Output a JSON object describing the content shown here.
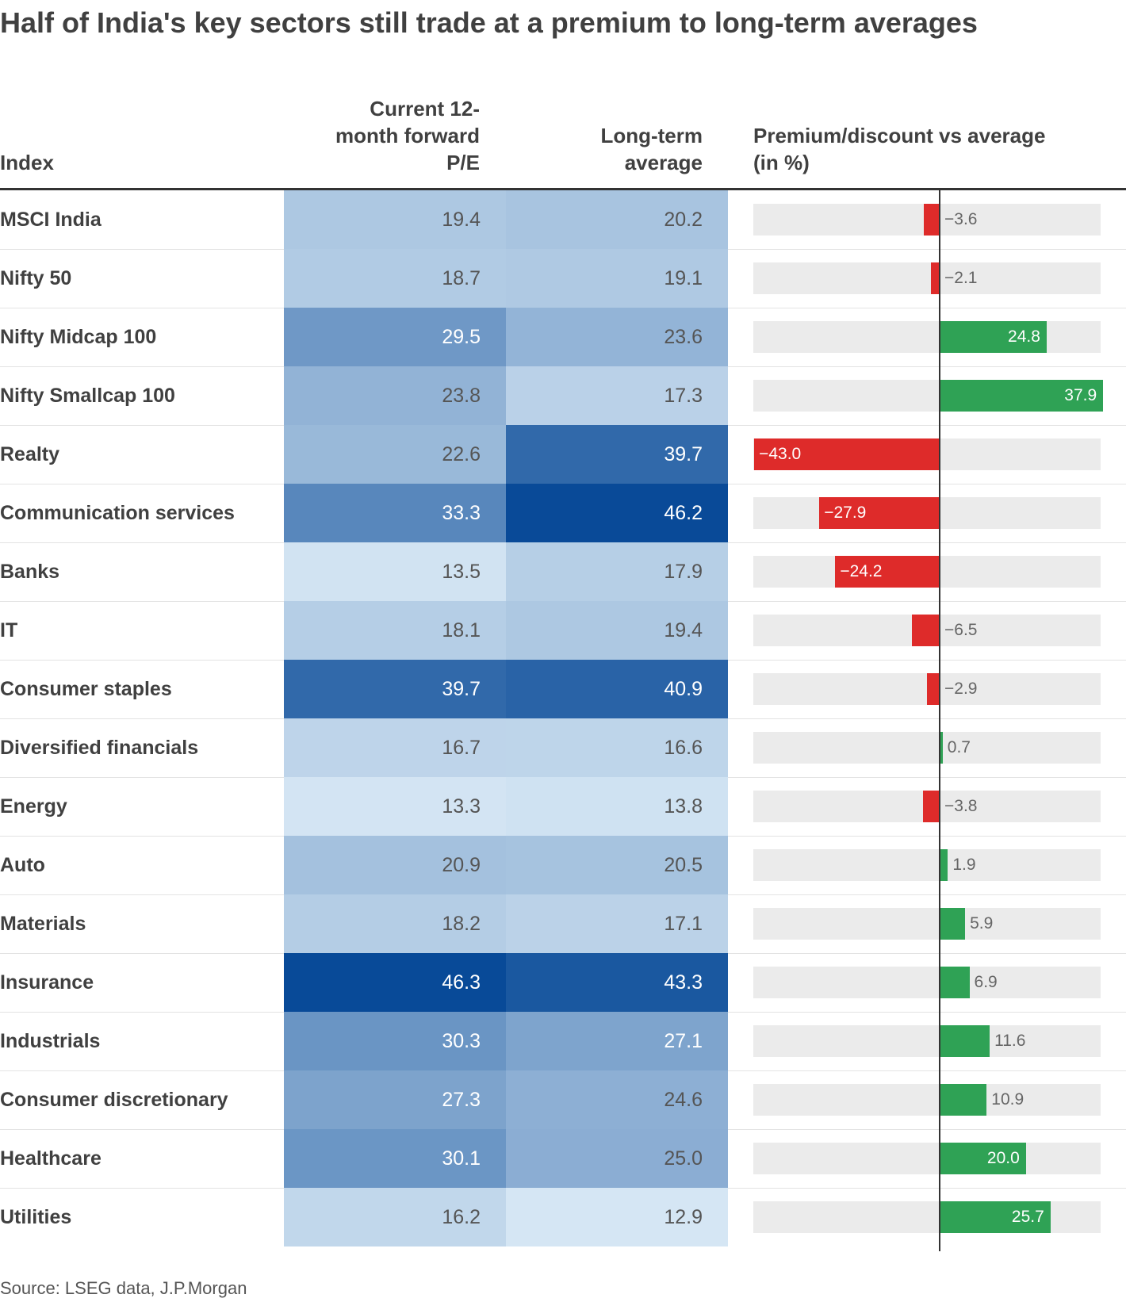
{
  "title": "Half of India's key sectors still trade at a premium to long-term averages",
  "headers": {
    "index": "Index",
    "current_pe": [
      "Current 12-",
      "month forward",
      "P/E"
    ],
    "long_term": [
      "Long-term",
      "average"
    ],
    "premium": [
      "Premium/discount vs average",
      "(in %)"
    ]
  },
  "source": "Source: LSEG data, J.P.Morgan",
  "colors": {
    "negative": "#de2b2a",
    "positive": "#2fa255",
    "track": "#ebebeb",
    "heat_low": "#d5e6f4",
    "heat_high": "#084a98"
  },
  "chart_data": {
    "type": "table",
    "title": "Half of India's key sectors still trade at a premium to long-term averages",
    "columns": [
      "Index",
      "Current 12-month forward P/E",
      "Long-term average",
      "Premium/discount vs average (in %)"
    ],
    "rows": [
      {
        "index": "MSCI India",
        "current": "19.4",
        "longterm": "20.2",
        "premium": "−3.6",
        "premium_value": -3.6
      },
      {
        "index": "Nifty 50",
        "current": "18.7",
        "longterm": "19.1",
        "premium": "−2.1",
        "premium_value": -2.1
      },
      {
        "index": "Nifty Midcap 100",
        "current": "29.5",
        "longterm": "23.6",
        "premium": "24.8",
        "premium_value": 24.8
      },
      {
        "index": "Nifty Smallcap 100",
        "current": "23.8",
        "longterm": "17.3",
        "premium": "37.9",
        "premium_value": 37.9
      },
      {
        "index": "Realty",
        "current": "22.6",
        "longterm": "39.7",
        "premium": "−43.0",
        "premium_value": -43.0
      },
      {
        "index": "Communication services",
        "current": "33.3",
        "longterm": "46.2",
        "premium": "−27.9",
        "premium_value": -27.9
      },
      {
        "index": "Banks",
        "current": "13.5",
        "longterm": "17.9",
        "premium": "−24.2",
        "premium_value": -24.2
      },
      {
        "index": "IT",
        "current": "18.1",
        "longterm": "19.4",
        "premium": "−6.5",
        "premium_value": -6.5
      },
      {
        "index": "Consumer staples",
        "current": "39.7",
        "longterm": "40.9",
        "premium": "−2.9",
        "premium_value": -2.9
      },
      {
        "index": "Diversified financials",
        "current": "16.7",
        "longterm": "16.6",
        "premium": "0.7",
        "premium_value": 0.7
      },
      {
        "index": "Energy",
        "current": "13.3",
        "longterm": "13.8",
        "premium": "−3.8",
        "premium_value": -3.8
      },
      {
        "index": "Auto",
        "current": "20.9",
        "longterm": "20.5",
        "premium": "1.9",
        "premium_value": 1.9
      },
      {
        "index": "Materials",
        "current": "18.2",
        "longterm": "17.1",
        "premium": "5.9",
        "premium_value": 5.9
      },
      {
        "index": "Insurance",
        "current": "46.3",
        "longterm": "43.3",
        "premium": "6.9",
        "premium_value": 6.9
      },
      {
        "index": "Industrials",
        "current": "30.3",
        "longterm": "27.1",
        "premium": "11.6",
        "premium_value": 11.6
      },
      {
        "index": "Consumer discretionary",
        "current": "27.3",
        "longterm": "24.6",
        "premium": "10.9",
        "premium_value": 10.9
      },
      {
        "index": "Healthcare",
        "current": "30.1",
        "longterm": "25.0",
        "premium": "20.0",
        "premium_value": 20.0
      },
      {
        "index": "Utilities",
        "current": "16.2",
        "longterm": "12.9",
        "premium": "25.7",
        "premium_value": 25.7
      }
    ],
    "premium_range": [
      -43,
      41
    ],
    "pe_color_range": [
      12.9,
      46.3
    ]
  }
}
